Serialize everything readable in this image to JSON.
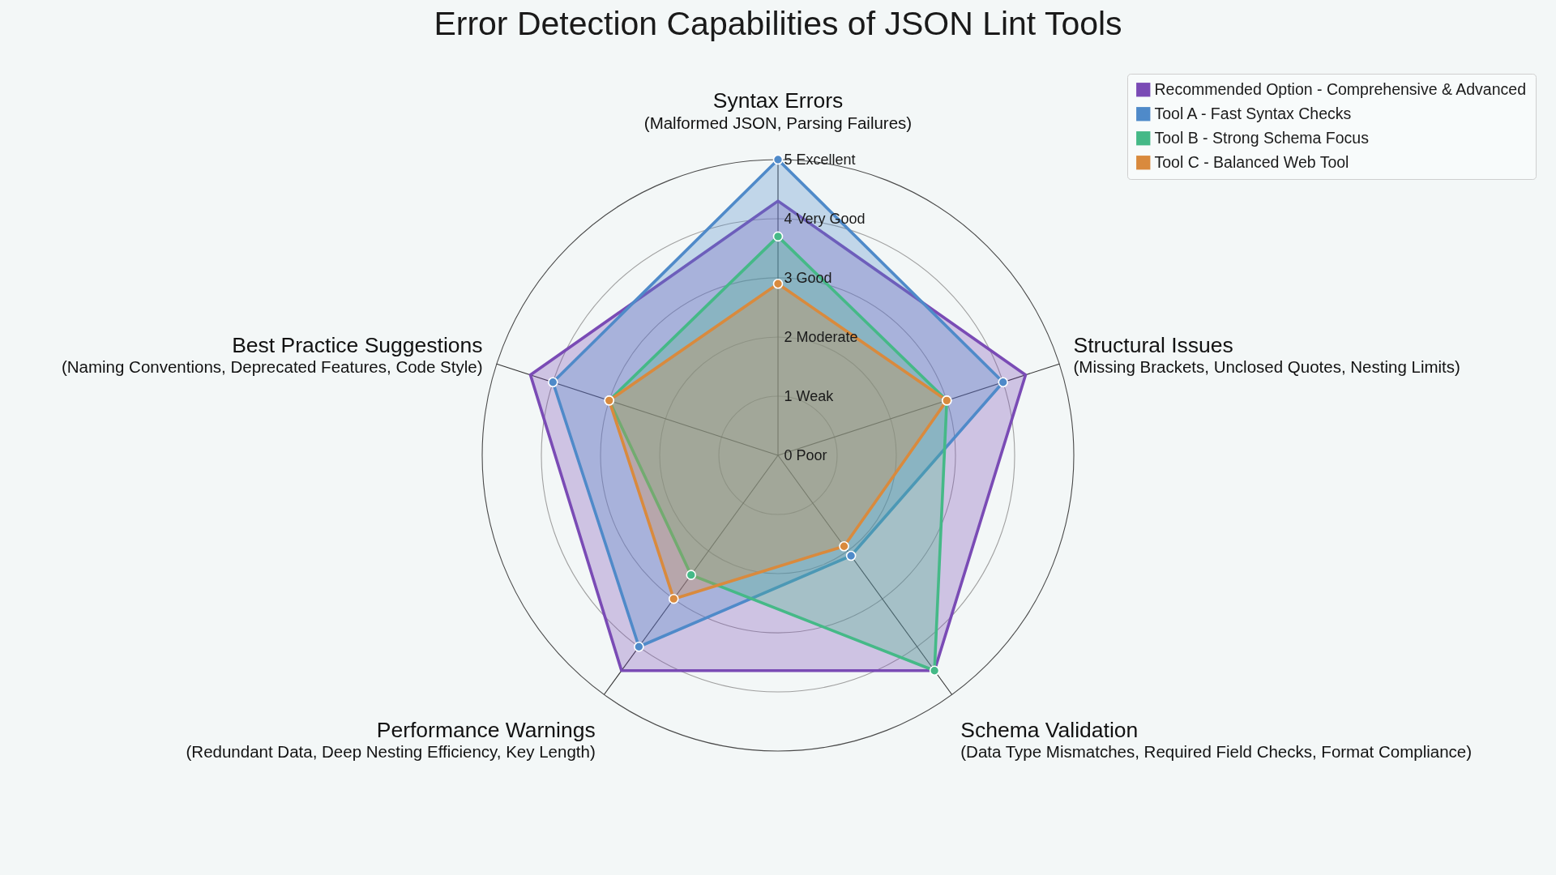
{
  "chart_data": {
    "type": "radar",
    "title": "Error Detection Capabilities of JSON Lint Tools",
    "categories": [
      "Syntax Errors\n(Malformed JSON, Parsing Failures)",
      "Structural Issues\n(Missing Brackets, Unclosed Quotes, Nesting Limits)",
      "Schema Validation\n(Data Type Mismatches, Required Field Checks, Format Compliance)",
      "Performance Warnings\n(Redundant Data, Deep Nesting Efficiency, Key Length)",
      "Best Practice Suggestions\n(Naming Conventions, Deprecated Features, Code Style)"
    ],
    "ylim": [
      0,
      5
    ],
    "yticks": [
      {
        "value": 0,
        "label": "0 Poor"
      },
      {
        "value": 1,
        "label": "1 Weak"
      },
      {
        "value": 2,
        "label": "2 Moderate"
      },
      {
        "value": 3,
        "label": "3 Good"
      },
      {
        "value": 4,
        "label": "4 Very Good"
      },
      {
        "value": 5,
        "label": "5 Excellent"
      }
    ],
    "grid": true,
    "legend": "top right",
    "marker": "circle",
    "line_style": "solid",
    "series": [
      {
        "name": "Recommended Option - Comprehensive & Advanced",
        "color": "#7a4bb5",
        "marker": "none",
        "values": [
          4.3,
          4.4,
          4.5,
          4.5,
          4.4
        ]
      },
      {
        "name": "Tool A - Fast Syntax Checks",
        "color": "#4f8ac9",
        "values": [
          5.0,
          4.0,
          2.1,
          4.0,
          4.0
        ]
      },
      {
        "name": "Tool B - Strong Schema Focus",
        "color": "#45b987",
        "values": [
          3.7,
          3.0,
          4.5,
          2.5,
          3.0
        ]
      },
      {
        "name": "Tool C - Balanced Web Tool",
        "color": "#d98a3d",
        "values": [
          2.9,
          3.0,
          1.9,
          3.0,
          3.0
        ]
      }
    ]
  }
}
